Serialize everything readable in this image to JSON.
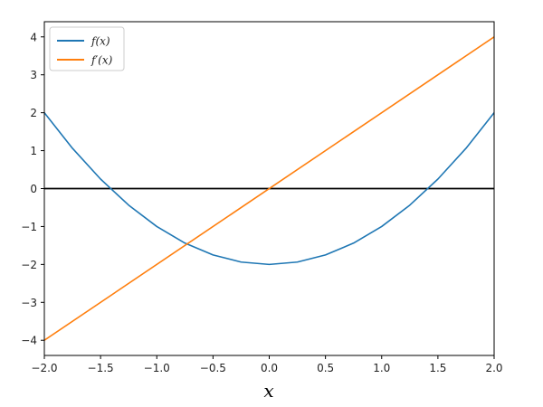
{
  "chart_data": {
    "type": "line",
    "title": "",
    "xlabel": "x",
    "ylabel": "",
    "xlim": [
      -2.0,
      2.0
    ],
    "ylim": [
      -4.4,
      4.4
    ],
    "xticks": [
      -2.0,
      -1.5,
      -1.0,
      -0.5,
      0.0,
      0.5,
      1.0,
      1.5,
      2.0
    ],
    "xtick_labels": [
      "−2.0",
      "−1.5",
      "−1.0",
      "−0.5",
      "0.0",
      "0.5",
      "1.0",
      "1.5",
      "2.0"
    ],
    "yticks": [
      -4,
      -3,
      -2,
      -1,
      0,
      1,
      2,
      3,
      4
    ],
    "ytick_labels": [
      "−4",
      "−3",
      "−2",
      "−1",
      "0",
      "1",
      "2",
      "3",
      "4"
    ],
    "grid": false,
    "legend_position": "top-left",
    "series": [
      {
        "name": "f(x)",
        "color": "#1f77b4",
        "x": [
          -2.0,
          -1.75,
          -1.5,
          -1.25,
          -1.0,
          -0.75,
          -0.5,
          -0.25,
          0.0,
          0.25,
          0.5,
          0.75,
          1.0,
          1.25,
          1.5,
          1.75,
          2.0
        ],
        "y": [
          2.0,
          1.0625,
          0.25,
          -0.4375,
          -1.0,
          -1.4375,
          -1.75,
          -1.9375,
          -2.0,
          -1.9375,
          -1.75,
          -1.4375,
          -1.0,
          -0.4375,
          0.25,
          1.0625,
          2.0
        ]
      },
      {
        "name": "f′(x)",
        "color": "#ff7f0e",
        "x": [
          -2.0,
          2.0
        ],
        "y": [
          -4.0,
          4.0
        ]
      }
    ],
    "reference_lines": [
      {
        "orientation": "horizontal",
        "y": 0,
        "color": "#000000"
      }
    ]
  }
}
